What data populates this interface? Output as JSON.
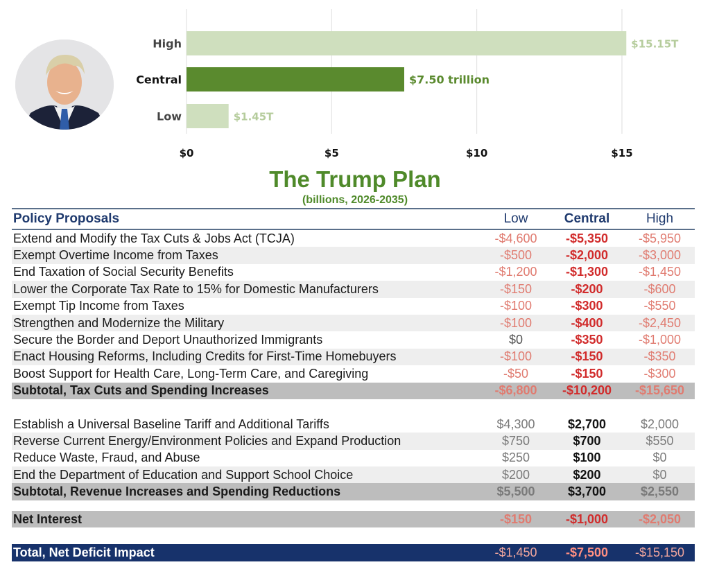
{
  "colors": {
    "accent_green": "#4f8a2a",
    "light_green": "#cfdfbe",
    "header_navy": "#1f3a6e",
    "total_bg": "#17326b",
    "neg_light": "#e07b70",
    "neg_strong": "#d12b2b"
  },
  "photo": {
    "icon": "portrait-photo"
  },
  "chart_data": {
    "type": "bar",
    "orientation": "horizontal",
    "categories": [
      "High",
      "Central",
      "Low"
    ],
    "values": [
      15.15,
      7.5,
      1.45
    ],
    "value_labels": [
      "$15.15T",
      "$7.50 trillion",
      "$1.45T"
    ],
    "unit": "trillions of dollars",
    "xlim": [
      0,
      17
    ],
    "xticks": [
      0,
      5,
      10,
      15
    ],
    "xtick_labels": [
      "$0",
      "$5",
      "$10",
      "$15"
    ],
    "grid": true,
    "highlight": "Central",
    "colors": [
      "#cfdfbe",
      "#5a8a2e",
      "#cfdfbe"
    ],
    "label_colors": [
      "#b5cc9c",
      "#5a8a2e",
      "#b5cc9c"
    ]
  },
  "title": "The Trump Plan",
  "subtitle": "(billions, 2026-2035)",
  "table": {
    "headers": {
      "label": "Policy Proposals",
      "low": "Low",
      "central": "Central",
      "high": "High"
    },
    "section1": [
      {
        "label": "Extend and Modify the Tax Cuts & Jobs Act (TCJA)",
        "low": "-$4,600",
        "central": "-$5,350",
        "high": "-$5,950"
      },
      {
        "label": "Exempt Overtime Income from Taxes",
        "low": "-$500",
        "central": "-$2,000",
        "high": "-$3,000"
      },
      {
        "label": "End Taxation of Social Security Benefits",
        "low": "-$1,200",
        "central": "-$1,300",
        "high": "-$1,450"
      },
      {
        "label": "Lower the Corporate Tax Rate to 15% for Domestic Manufacturers",
        "low": "-$150",
        "central": "-$200",
        "high": "-$600"
      },
      {
        "label": "Exempt Tip Income from Taxes",
        "low": "-$100",
        "central": "-$300",
        "high": "-$550"
      },
      {
        "label": "Strengthen and Modernize the Military",
        "low": "-$100",
        "central": "-$400",
        "high": "-$2,450"
      },
      {
        "label": "Secure the Border and Deport Unauthorized Immigrants",
        "low": "$0",
        "central": "-$350",
        "high": "-$1,000"
      },
      {
        "label": "Enact Housing Reforms, Including Credits for First-Time Homebuyers",
        "low": "-$100",
        "central": "-$150",
        "high": "-$350"
      },
      {
        "label": "Boost Support for Health Care, Long-Term Care, and Caregiving",
        "low": "-$50",
        "central": "-$150",
        "high": "-$300"
      }
    ],
    "subtotal1": {
      "label": "Subtotal, Tax Cuts and Spending Increases",
      "low": "-$6,800",
      "central": "-$10,200",
      "high": "-$15,650"
    },
    "section2": [
      {
        "label": "Establish a Universal Baseline Tariff and Additional Tariffs",
        "low": "$4,300",
        "central": "$2,700",
        "high": "$2,000"
      },
      {
        "label": "Reverse Current Energy/Environment Policies and Expand Production",
        "low": "$750",
        "central": "$700",
        "high": "$550"
      },
      {
        "label": "Reduce Waste, Fraud, and Abuse",
        "low": "$250",
        "central": "$100",
        "high": "$0"
      },
      {
        "label": "End the Department of Education and Support School Choice",
        "low": "$200",
        "central": "$200",
        "high": "$0"
      }
    ],
    "subtotal2": {
      "label": "Subtotal, Revenue Increases and Spending Reductions",
      "low": "$5,500",
      "central": "$3,700",
      "high": "$2,550"
    },
    "net_interest": {
      "label": "Net Interest",
      "low": "-$150",
      "central": "-$1,000",
      "high": "-$2,050"
    },
    "total": {
      "label": "Total, Net Deficit Impact",
      "low": "-$1,450",
      "central": "-$7,500",
      "high": "-$15,150"
    }
  }
}
